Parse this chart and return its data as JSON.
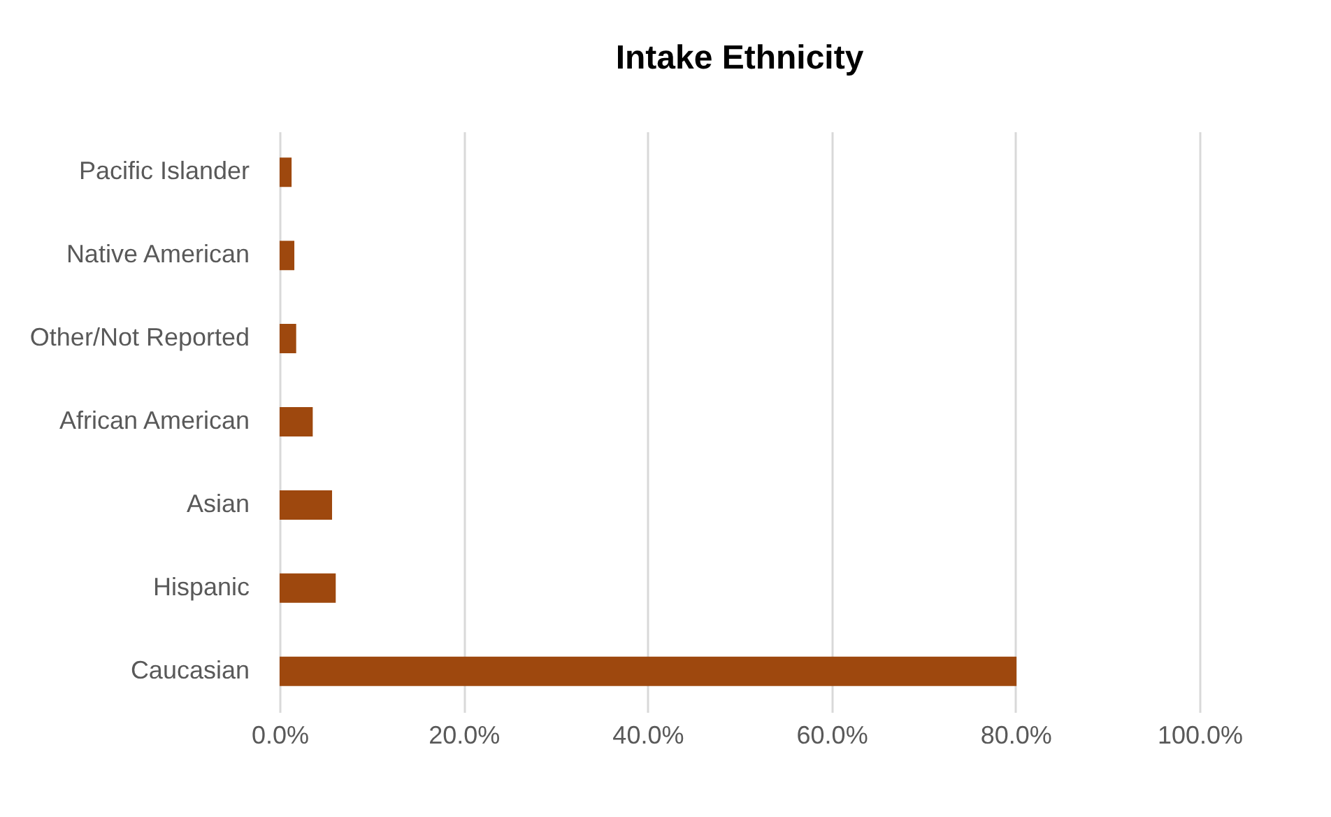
{
  "chart_data": {
    "type": "bar",
    "orientation": "horizontal",
    "title": "Intake Ethnicity",
    "categories": [
      "Pacific Islander",
      "Native American",
      "Other/Not Reported",
      "African American",
      "Asian",
      "Hispanic",
      "Caucasian"
    ],
    "values": [
      1.3,
      1.6,
      1.8,
      3.6,
      5.7,
      6.1,
      80.1
    ],
    "color": "#9e480e",
    "xlim": [
      0,
      100
    ],
    "xticks": [
      {
        "value": 0,
        "label": "0.0%"
      },
      {
        "value": 20,
        "label": "20.0%"
      },
      {
        "value": 40,
        "label": "40.0%"
      },
      {
        "value": 60,
        "label": "60.0%"
      },
      {
        "value": 80,
        "label": "80.0%"
      },
      {
        "value": 100,
        "label": "100.0%"
      }
    ],
    "grid": "x"
  }
}
